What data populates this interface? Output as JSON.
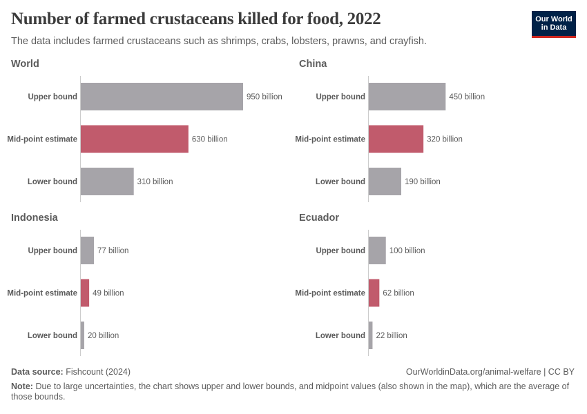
{
  "header": {
    "title": "Number of farmed crustaceans killed for food, 2022",
    "subtitle": "The data includes farmed crustaceans such as shrimps, crabs, lobsters, prawns, and crayfish.",
    "logo_text": "Our World in Data"
  },
  "colors": {
    "bound": "#a6a4a9",
    "midpoint": "#c15b6c",
    "axis": "#cccccc"
  },
  "chart_data": [
    {
      "type": "bar",
      "orientation": "horizontal",
      "title": "World",
      "categories": [
        "Upper bound",
        "Mid-point estimate",
        "Lower bound"
      ],
      "values": [
        950,
        630,
        310
      ],
      "labels": [
        "950 billion",
        "630 billion",
        "310 billion"
      ],
      "unit": "billion"
    },
    {
      "type": "bar",
      "orientation": "horizontal",
      "title": "China",
      "categories": [
        "Upper bound",
        "Mid-point estimate",
        "Lower bound"
      ],
      "values": [
        450,
        320,
        190
      ],
      "labels": [
        "450 billion",
        "320 billion",
        "190 billion"
      ],
      "unit": "billion"
    },
    {
      "type": "bar",
      "orientation": "horizontal",
      "title": "Indonesia",
      "categories": [
        "Upper bound",
        "Mid-point estimate",
        "Lower bound"
      ],
      "values": [
        77,
        49,
        20
      ],
      "labels": [
        "77 billion",
        "49 billion",
        "20 billion"
      ],
      "unit": "billion"
    },
    {
      "type": "bar",
      "orientation": "horizontal",
      "title": "Ecuador",
      "categories": [
        "Upper bound",
        "Mid-point estimate",
        "Lower bound"
      ],
      "values": [
        100,
        62,
        22
      ],
      "labels": [
        "100 billion",
        "62 billion",
        "22 billion"
      ],
      "unit": "billion"
    }
  ],
  "footer": {
    "source_label": "Data source:",
    "source": "Fishcount (2024)",
    "url": "OurWorldinData.org/animal-welfare | CC BY",
    "note_label": "Note:",
    "note": "Due to large uncertainties, the chart shows upper and lower bounds, and midpoint values (also shown in the map), which are the average of those bounds."
  }
}
